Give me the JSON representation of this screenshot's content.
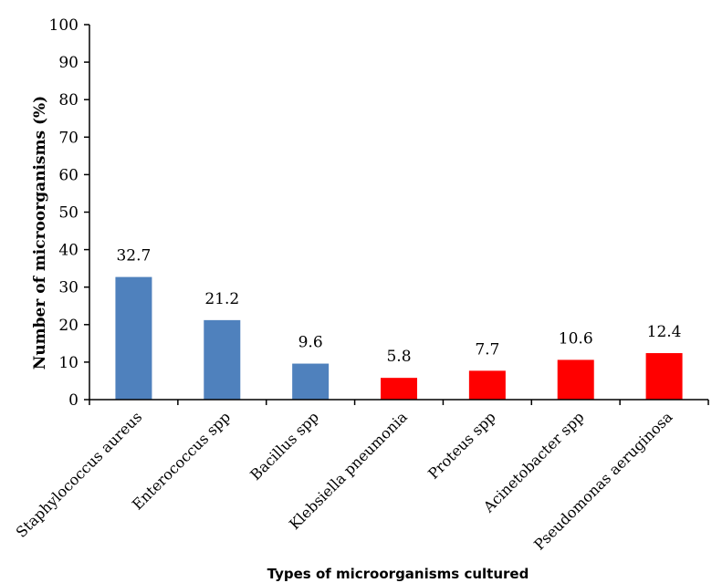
{
  "chart_data": {
    "type": "bar",
    "categories": [
      "Staphylococcus aureus",
      "Enterococcus spp",
      "Bacillus spp",
      "Klebsiella pneumonia",
      "Proteus spp",
      "Acinetobacter spp",
      "Pseudomonas aeruginosa"
    ],
    "values": [
      32.7,
      21.2,
      9.6,
      5.8,
      7.7,
      10.6,
      12.4
    ],
    "value_labels": [
      "32.7",
      "21.2",
      "9.6",
      "5.8",
      "7.7",
      "10.6",
      "12.4"
    ],
    "bar_colors": [
      "#4f81bd",
      "#4f81bd",
      "#4f81bd",
      "#ff0000",
      "#ff0000",
      "#ff0000",
      "#ff0000"
    ],
    "xlabel": "Types of microorganisms cultured",
    "ylabel": "Number of microorganisms (%)",
    "ylim": [
      0,
      100
    ],
    "yticks": [
      0,
      10,
      20,
      30,
      40,
      50,
      60,
      70,
      80,
      90,
      100
    ],
    "grid": false,
    "legend": "none"
  }
}
